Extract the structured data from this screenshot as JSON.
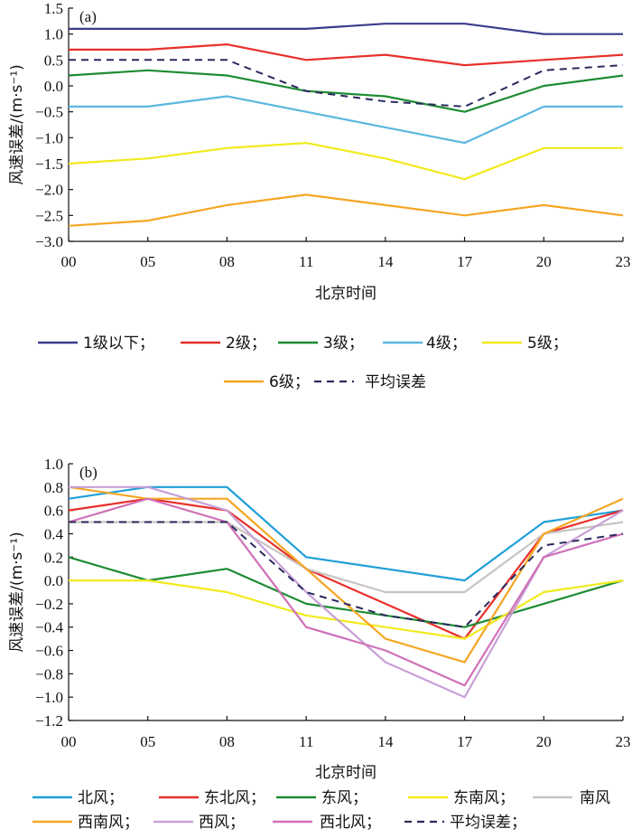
{
  "chart_data": [
    {
      "type": "line",
      "panel_label": "(a)",
      "xlabel": "北京时间",
      "ylabel": "风速误差/(m·s⁻¹)",
      "categories": [
        "00",
        "05",
        "08",
        "11",
        "14",
        "17",
        "20",
        "23"
      ],
      "ylim": [
        -3.0,
        1.5
      ],
      "yticks": [
        "1.5",
        "1.0",
        "0.5",
        "0.0",
        "−0.5",
        "−1.0",
        "−1.5",
        "−2.0",
        "−2.5",
        "−3.0"
      ],
      "ytick_values": [
        1.5,
        1.0,
        0.5,
        0.0,
        -0.5,
        -1.0,
        -1.5,
        -2.0,
        -2.5,
        -3.0
      ],
      "grid": false,
      "legend_position": "bottom",
      "series": [
        {
          "name": "1级以下；",
          "color": "#3b3b8c",
          "dash": false,
          "values": [
            1.1,
            1.1,
            1.1,
            1.1,
            1.2,
            1.2,
            1.0,
            1.0
          ]
        },
        {
          "name": "2级；",
          "color": "#e8302a",
          "dash": false,
          "values": [
            0.7,
            0.7,
            0.8,
            0.5,
            0.6,
            0.4,
            0.5,
            0.6
          ]
        },
        {
          "name": "3级；",
          "color": "#1e8c32",
          "dash": false,
          "values": [
            0.2,
            0.3,
            0.2,
            -0.1,
            -0.2,
            -0.5,
            0.0,
            0.2
          ]
        },
        {
          "name": "4级；",
          "color": "#5bb8e0",
          "dash": false,
          "values": [
            -0.4,
            -0.4,
            -0.2,
            -0.5,
            -0.8,
            -1.1,
            -0.4,
            -0.4
          ]
        },
        {
          "name": "5级；",
          "color": "#f2ea1e",
          "dash": false,
          "values": [
            -1.5,
            -1.4,
            -1.2,
            -1.1,
            -1.4,
            -1.8,
            -1.2,
            -1.2
          ]
        },
        {
          "name": "6级；",
          "color": "#f5a623",
          "dash": false,
          "values": [
            -2.7,
            -2.6,
            -2.3,
            -2.1,
            -2.3,
            -2.5,
            -2.3,
            -2.5
          ]
        },
        {
          "name": "平均误差",
          "color": "#2a2a5e",
          "dash": true,
          "values": [
            0.5,
            0.5,
            0.5,
            -0.1,
            -0.3,
            -0.4,
            0.3,
            0.4
          ]
        }
      ]
    },
    {
      "type": "line",
      "panel_label": "(b)",
      "xlabel": "北京时间",
      "ylabel": "风速误差/(m·s⁻¹)",
      "categories": [
        "00",
        "05",
        "08",
        "11",
        "14",
        "17",
        "20",
        "23"
      ],
      "ylim": [
        -1.2,
        1.0
      ],
      "yticks": [
        "1.0",
        "0.8",
        "0.6",
        "0.4",
        "0.2",
        "0.0",
        "−0.2",
        "−0.4",
        "−0.6",
        "−0.8",
        "−1.0",
        "−1.2"
      ],
      "ytick_values": [
        1.0,
        0.8,
        0.6,
        0.4,
        0.2,
        0.0,
        -0.2,
        -0.4,
        -0.6,
        -0.8,
        -1.0,
        -1.2
      ],
      "grid": false,
      "legend_position": "bottom",
      "series": [
        {
          "name": "北风；",
          "color": "#1f9fd8",
          "dash": false,
          "values": [
            0.7,
            0.8,
            0.8,
            0.2,
            0.1,
            0.0,
            0.5,
            0.6
          ]
        },
        {
          "name": "东北风；",
          "color": "#e8302a",
          "dash": false,
          "values": [
            0.6,
            0.7,
            0.6,
            0.1,
            -0.2,
            -0.5,
            0.4,
            0.6
          ]
        },
        {
          "name": "东风；",
          "color": "#1e8c32",
          "dash": false,
          "values": [
            0.2,
            0.0,
            0.1,
            -0.2,
            -0.3,
            -0.4,
            -0.2,
            0.0
          ]
        },
        {
          "name": "东南风；",
          "color": "#f2ea1e",
          "dash": false,
          "values": [
            0.0,
            0.0,
            -0.1,
            -0.3,
            -0.4,
            -0.5,
            -0.1,
            0.0
          ]
        },
        {
          "name": "南风",
          "color": "#c9c4c0",
          "dash": false,
          "values": [
            0.5,
            0.5,
            0.5,
            0.1,
            -0.1,
            -0.1,
            0.4,
            0.5
          ]
        },
        {
          "name": "西南风；",
          "color": "#f5a623",
          "dash": false,
          "values": [
            0.8,
            0.7,
            0.7,
            0.1,
            -0.5,
            -0.7,
            0.4,
            0.7
          ]
        },
        {
          "name": "西风；",
          "color": "#c8a0d8",
          "dash": false,
          "values": [
            0.8,
            0.8,
            0.6,
            -0.1,
            -0.7,
            -1.0,
            0.2,
            0.6
          ]
        },
        {
          "name": "西北风；",
          "color": "#d070b8",
          "dash": false,
          "values": [
            0.5,
            0.7,
            0.5,
            -0.4,
            -0.6,
            -0.9,
            0.2,
            0.4
          ]
        },
        {
          "name": "平均误差；",
          "color": "#2a2a5e",
          "dash": true,
          "values": [
            0.5,
            0.5,
            0.5,
            -0.1,
            -0.3,
            -0.4,
            0.3,
            0.4
          ]
        }
      ]
    }
  ]
}
